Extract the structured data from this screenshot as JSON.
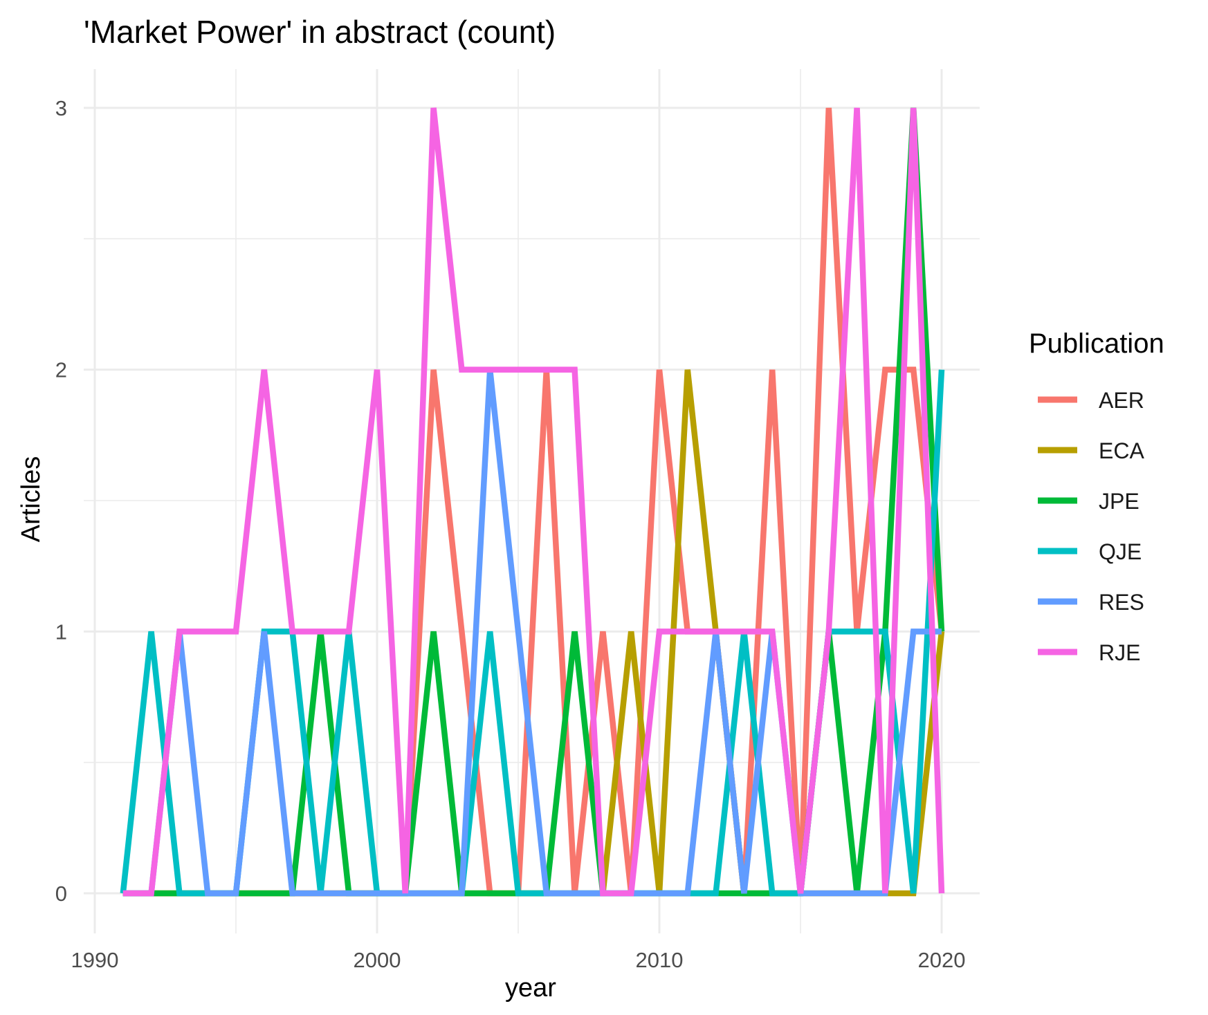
{
  "chart_data": {
    "type": "line",
    "title": "'Market Power' in abstract (count)",
    "xlabel": "year",
    "ylabel": "Articles",
    "xlim": [
      1991,
      2020
    ],
    "ylim": [
      0,
      3
    ],
    "x_ticks": [
      1990,
      2000,
      2010,
      2020
    ],
    "y_ticks": [
      0,
      1,
      2,
      3
    ],
    "grid": true,
    "legend": {
      "title": "Publication",
      "position": "right"
    },
    "x": [
      1991,
      1992,
      1993,
      1994,
      1995,
      1996,
      1997,
      1998,
      1999,
      2000,
      2001,
      2002,
      2003,
      2004,
      2005,
      2006,
      2007,
      2008,
      2009,
      2010,
      2011,
      2012,
      2013,
      2014,
      2015,
      2016,
      2017,
      2018,
      2019,
      2020
    ],
    "series": [
      {
        "name": "AER",
        "color": "#F8766D",
        "values": [
          0,
          0,
          0,
          0,
          0,
          0,
          0,
          0,
          0,
          0,
          0,
          2,
          1,
          0,
          0,
          2,
          0,
          1,
          0,
          2,
          1,
          1,
          0,
          2,
          0,
          3,
          1,
          2,
          2,
          1
        ]
      },
      {
        "name": "ECA",
        "color": "#B79F00",
        "values": [
          0,
          0,
          0,
          0,
          0,
          0,
          0,
          0,
          0,
          0,
          0,
          0,
          0,
          0,
          0,
          0,
          0,
          0,
          1,
          0,
          2,
          1,
          0,
          0,
          0,
          0,
          0,
          0,
          0,
          1
        ]
      },
      {
        "name": "JPE",
        "color": "#00BA38",
        "values": [
          0,
          0,
          0,
          0,
          0,
          0,
          0,
          1,
          0,
          0,
          0,
          1,
          0,
          0,
          0,
          0,
          1,
          0,
          0,
          0,
          0,
          0,
          0,
          0,
          0,
          1,
          0,
          1,
          3,
          1
        ]
      },
      {
        "name": "QJE",
        "color": "#00BFC4",
        "values": [
          0,
          1,
          0,
          0,
          0,
          1,
          1,
          0,
          1,
          0,
          0,
          0,
          0,
          1,
          0,
          0,
          0,
          0,
          0,
          0,
          0,
          0,
          1,
          0,
          0,
          1,
          1,
          1,
          0,
          2
        ]
      },
      {
        "name": "RES",
        "color": "#619CFF",
        "values": [
          0,
          0,
          1,
          0,
          0,
          1,
          0,
          0,
          0,
          0,
          0,
          0,
          0,
          2,
          1,
          0,
          0,
          0,
          0,
          0,
          0,
          1,
          0,
          1,
          0,
          0,
          0,
          0,
          1,
          1
        ]
      },
      {
        "name": "RJE",
        "color": "#F564E3",
        "values": [
          0,
          0,
          1,
          1,
          1,
          2,
          1,
          1,
          1,
          2,
          0,
          3,
          2,
          2,
          2,
          2,
          2,
          0,
          0,
          1,
          1,
          1,
          1,
          1,
          0,
          1,
          3,
          0,
          3,
          0
        ]
      }
    ]
  }
}
